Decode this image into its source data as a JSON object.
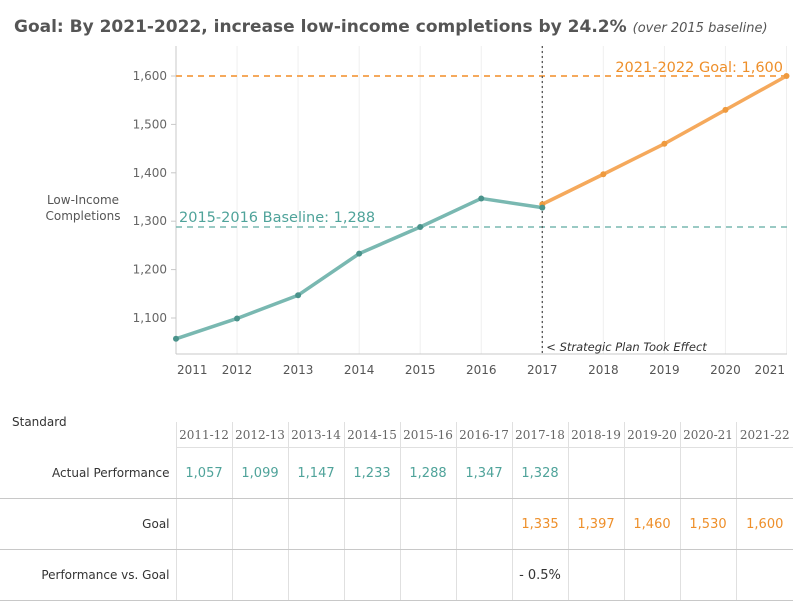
{
  "title": {
    "main": "Goal: By 2021-2022, increase low-income completions by 24.2%",
    "sub": "(over 2015 baseline)"
  },
  "y_axis_label": [
    "Low-Income",
    "Completions"
  ],
  "annotations": {
    "goal_line": "2021-2022 Goal: 1,600",
    "baseline_line": "2015-2016 Baseline: 1,288",
    "strategic_plan": "< Strategic Plan Took Effect"
  },
  "colors": {
    "actual": "#79b8b1",
    "goal": "#f5a95c",
    "goal_text": "#ee8f2a",
    "actual_text": "#4fa39a",
    "marker_actual": "#4a938b",
    "marker_goal": "#ef9a3e"
  },
  "chart_data": {
    "type": "line",
    "title": "Goal: By 2021-2022, increase low-income completions by 24.2%",
    "ylabel": "Low-Income Completions",
    "xlabel": "",
    "ylim": [
      1050,
      1650
    ],
    "yticks": [
      1100,
      1200,
      1300,
      1400,
      1500,
      1600
    ],
    "ytick_labels": [
      "1,100",
      "1,200",
      "1,300",
      "1,400",
      "1,500",
      "1,600"
    ],
    "x_tick_labels": [
      "2011",
      "2012",
      "2013",
      "2014",
      "2015",
      "2016",
      "2017",
      "2018",
      "2019",
      "2020",
      "2021"
    ],
    "series": [
      {
        "name": "Actual Performance",
        "x": [
          2011,
          2012,
          2013,
          2014,
          2015,
          2016,
          2017
        ],
        "values": [
          1057,
          1099,
          1147,
          1233,
          1288,
          1347,
          1328
        ]
      },
      {
        "name": "Goal",
        "x": [
          2017,
          2018,
          2019,
          2020,
          2021
        ],
        "values": [
          1335,
          1397,
          1460,
          1530,
          1600
        ]
      }
    ],
    "reference_lines": [
      {
        "name": "2021-2022 Goal",
        "value": 1600
      },
      {
        "name": "2015-2016 Baseline",
        "value": 1288
      }
    ],
    "vertical_marker_year": 2017
  },
  "table": {
    "standard_label": "Standard",
    "columns": [
      "2011-12",
      "2012-13",
      "2013-14",
      "2014-15",
      "2015-16",
      "2016-17",
      "2017-18",
      "2018-19",
      "2019-20",
      "2020-21",
      "2021-22"
    ],
    "rows": [
      {
        "label": "Actual Performance",
        "cls": "teal",
        "values": [
          "1,057",
          "1,099",
          "1,147",
          "1,233",
          "1,288",
          "1,347",
          "1,328",
          "",
          "",
          "",
          ""
        ]
      },
      {
        "label": "Goal",
        "cls": "orange",
        "values": [
          "",
          "",
          "",
          "",
          "",
          "",
          "1,335",
          "1,397",
          "1,460",
          "1,530",
          "1,600"
        ]
      },
      {
        "label": "Performance vs. Goal",
        "cls": "",
        "values": [
          "",
          "",
          "",
          "",
          "",
          "",
          "- 0.5%",
          "",
          "",
          "",
          ""
        ]
      }
    ]
  }
}
